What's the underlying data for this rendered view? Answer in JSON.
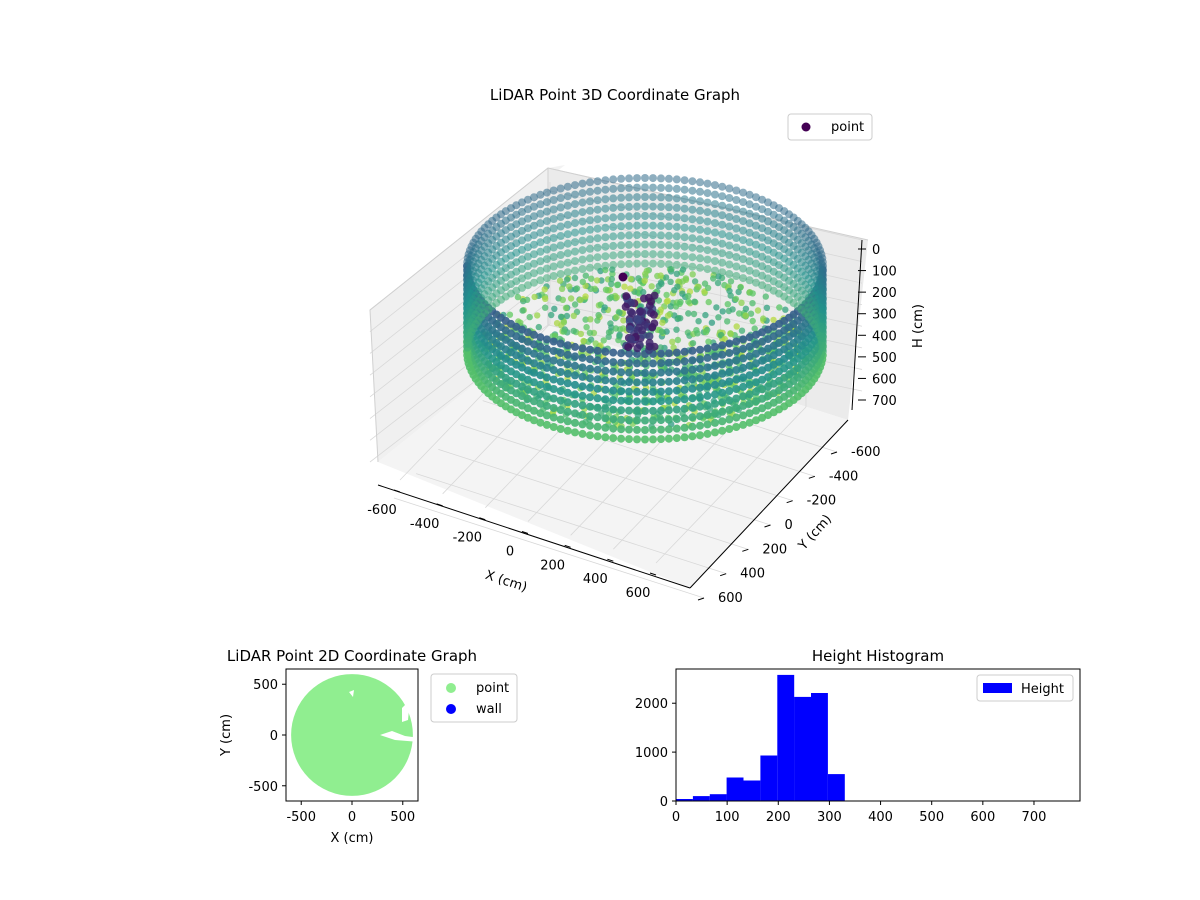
{
  "chart_data": [
    {
      "type": "scatter",
      "subtype": "3d",
      "title": "LiDAR Point 3D Coordinate Graph",
      "xlabel": "X (cm)",
      "ylabel": "Y (cm)",
      "zlabel": "H (cm)",
      "xlim": [
        -700,
        700
      ],
      "ylim": [
        -700,
        700
      ],
      "zlim": [
        800,
        0
      ],
      "xticks": [
        -600,
        -400,
        -200,
        0,
        200,
        400,
        600
      ],
      "yticks": [
        600,
        400,
        200,
        0,
        -200,
        -400,
        -600
      ],
      "zticks": [
        0,
        100,
        200,
        300,
        400,
        500,
        600,
        700
      ],
      "colormap": "viridis",
      "grid": true,
      "legend": {
        "position": "top-right",
        "entries": [
          {
            "label": "point",
            "color": "#440154"
          }
        ]
      },
      "wall_radius": 600,
      "wall_height_range": [
        150,
        450
      ]
    },
    {
      "type": "scatter",
      "title": "LiDAR Point 2D Coordinate Graph",
      "xlabel": "X (cm)",
      "ylabel": "Y (cm)",
      "xlim": [
        -650,
        650
      ],
      "ylim": [
        -650,
        650
      ],
      "xticks": [
        -500,
        0,
        500
      ],
      "yticks": [
        500,
        0,
        -500
      ],
      "legend": {
        "position": "right",
        "entries": [
          {
            "label": "point",
            "color": "#90ee90"
          },
          {
            "label": "wall",
            "color": "#0000ff"
          }
        ]
      },
      "point_region_radius": 600
    },
    {
      "type": "bar",
      "subtype": "histogram",
      "title": "Height Histogram",
      "xlim": [
        0,
        790
      ],
      "ylim": [
        0,
        2700
      ],
      "xticks": [
        0,
        100,
        200,
        300,
        400,
        500,
        600,
        700
      ],
      "yticks": [
        0,
        1000,
        2000
      ],
      "bin_width": 33,
      "bin_starts": [
        0,
        33,
        66,
        99,
        132,
        165,
        198,
        231,
        264,
        297
      ],
      "values": [
        40,
        100,
        140,
        480,
        420,
        930,
        2580,
        2130,
        2210,
        550
      ],
      "legend": {
        "position": "top-right",
        "entries": [
          {
            "label": "Height",
            "color": "#0000ff"
          }
        ]
      }
    }
  ]
}
